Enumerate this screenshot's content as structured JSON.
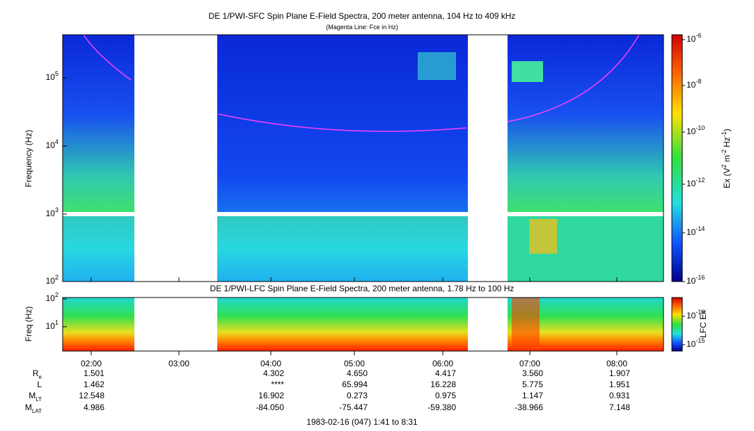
{
  "top_panel": {
    "title": "DE 1/PWI-SFC  Spin Plane E-Field Spectra, 200 meter antenna, 104 Hz to 409 kHz",
    "subtitle": "(Magenta Line: Fce in Hz)",
    "y_label": "Frequency (Hz)",
    "yticks": [
      {
        "base": "10",
        "exp": "2"
      },
      {
        "base": "10",
        "exp": "3"
      },
      {
        "base": "10",
        "exp": "4"
      },
      {
        "base": "10",
        "exp": "5"
      }
    ],
    "colorbar_label": [
      {
        "text": "Ex (V"
      },
      {
        "text": "2",
        "sup": true
      },
      {
        "text": " m"
      },
      {
        "text": "-2",
        "sup": true
      },
      {
        "text": " Hz"
      },
      {
        "text": "-1",
        "sup": true
      },
      {
        "text": ")"
      }
    ],
    "colorbar_ticks": [
      {
        "base": "10",
        "exp": "-6"
      },
      {
        "base": "10",
        "exp": "-8"
      },
      {
        "base": "10",
        "exp": "-10"
      },
      {
        "base": "10",
        "exp": "-12"
      },
      {
        "base": "10",
        "exp": "-14"
      },
      {
        "base": "10",
        "exp": "-16"
      }
    ]
  },
  "bottom_panel": {
    "title": "DE 1/PWI-LFC  Spin Plane E-Field Spectra, 200 meter antenna, 1.78 Hz to 100 Hz",
    "y_label": "Freq (Hz)",
    "yticks": [
      {
        "base": "10",
        "exp": "1"
      },
      {
        "base": "10",
        "exp": "2"
      }
    ],
    "colorbar_label": "LFC Ex",
    "colorbar_ticks": [
      {
        "base": "10",
        "exp": "-10"
      },
      {
        "base": "10",
        "exp": "-15"
      }
    ]
  },
  "x_ticks": [
    "02:00",
    "03:00",
    "04:00",
    "05:00",
    "06:00",
    "07:00",
    "08:00"
  ],
  "ephemeris": [
    {
      "label": {
        "main": "R",
        "sub": "e"
      },
      "values": [
        "1.501",
        null,
        "4.302",
        "4.650",
        "4.417",
        "3.560",
        "1.907"
      ]
    },
    {
      "label": {
        "main": "L"
      },
      "values": [
        "1.462",
        null,
        "****",
        "65.994",
        "16.228",
        "5.775",
        "1.951"
      ]
    },
    {
      "label": {
        "main": "M",
        "sub": "LT"
      },
      "values": [
        "12.548",
        null,
        "16.902",
        "0.273",
        "0.975",
        "1.147",
        "0.931"
      ]
    },
    {
      "label": {
        "main": "M",
        "sub": "LAT"
      },
      "values": [
        "4.986",
        null,
        "-84.050",
        "-75.447",
        "-59.380",
        "-38.966",
        "7.148"
      ]
    }
  ],
  "footer": "1983-02-16 (047) 1:41 to 8:31"
}
